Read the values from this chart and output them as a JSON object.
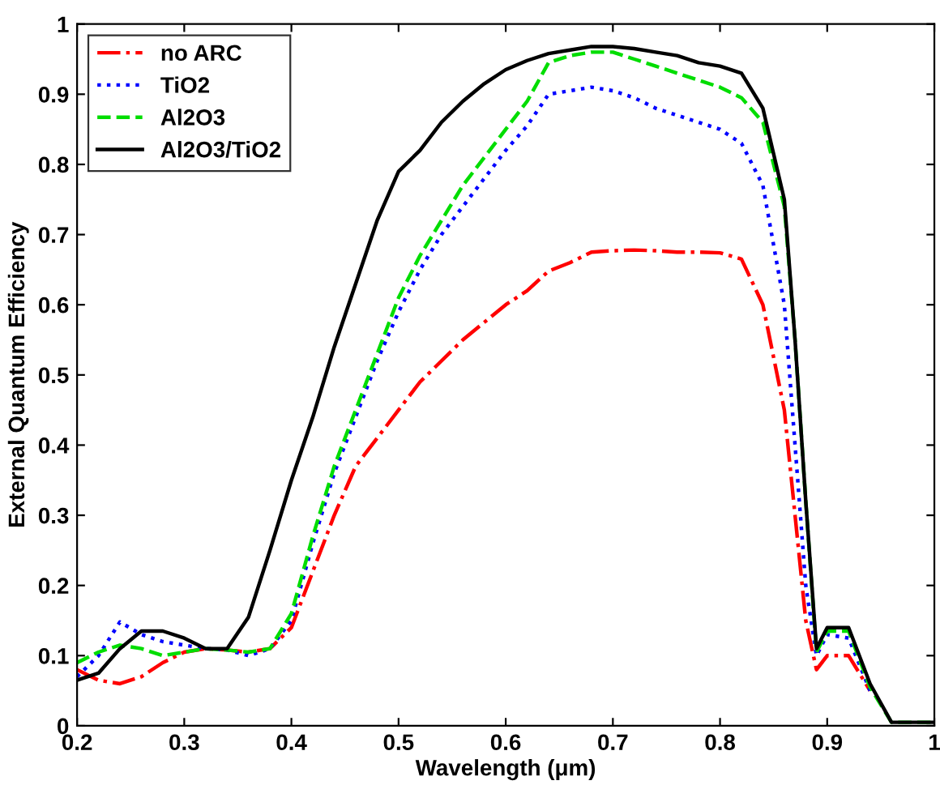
{
  "chart_data": {
    "type": "line",
    "xlabel": "Wavelength (μm)",
    "ylabel": "External Quantum Efficiency",
    "x": [
      0.2,
      0.22,
      0.24,
      0.26,
      0.28,
      0.3,
      0.32,
      0.34,
      0.36,
      0.38,
      0.4,
      0.42,
      0.44,
      0.46,
      0.48,
      0.5,
      0.52,
      0.54,
      0.56,
      0.58,
      0.6,
      0.62,
      0.64,
      0.66,
      0.68,
      0.7,
      0.72,
      0.74,
      0.76,
      0.78,
      0.8,
      0.82,
      0.84,
      0.86,
      0.87,
      0.88,
      0.89,
      0.9,
      0.92,
      0.94,
      0.96,
      0.98,
      1.0
    ],
    "series": [
      {
        "name": "no ARC",
        "color": "#ff0000",
        "line_style": "dashdot",
        "values": [
          0.08,
          0.065,
          0.06,
          0.07,
          0.09,
          0.105,
          0.11,
          0.108,
          0.105,
          0.11,
          0.14,
          0.22,
          0.3,
          0.37,
          0.41,
          0.45,
          0.49,
          0.52,
          0.55,
          0.575,
          0.6,
          0.62,
          0.648,
          0.66,
          0.675,
          0.677,
          0.678,
          0.677,
          0.675,
          0.675,
          0.674,
          0.665,
          0.6,
          0.45,
          0.3,
          0.15,
          0.08,
          0.1,
          0.1,
          0.05,
          null,
          null,
          null
        ]
      },
      {
        "name": "TiO2",
        "color": "#0000ff",
        "line_style": "dotted",
        "values": [
          0.07,
          0.1,
          0.148,
          0.13,
          0.12,
          0.115,
          0.11,
          0.108,
          0.1,
          0.11,
          0.15,
          0.26,
          0.36,
          0.44,
          0.52,
          0.59,
          0.65,
          0.7,
          0.74,
          0.78,
          0.82,
          0.855,
          0.9,
          0.905,
          0.91,
          0.905,
          0.895,
          0.88,
          0.87,
          0.86,
          0.85,
          0.83,
          0.77,
          0.6,
          0.4,
          0.2,
          0.1,
          0.13,
          0.125,
          0.05,
          null,
          null,
          null
        ]
      },
      {
        "name": "Al2O3",
        "color": "#00dd00",
        "line_style": "dashed",
        "values": [
          0.09,
          0.105,
          0.115,
          0.11,
          0.1,
          0.105,
          0.11,
          0.108,
          0.105,
          0.11,
          0.16,
          0.27,
          0.37,
          0.45,
          0.53,
          0.61,
          0.67,
          0.72,
          0.77,
          0.81,
          0.85,
          0.89,
          0.945,
          0.955,
          0.96,
          0.96,
          0.95,
          0.94,
          0.93,
          0.92,
          0.91,
          0.895,
          0.86,
          0.74,
          0.55,
          0.32,
          0.105,
          0.135,
          0.135,
          0.055,
          0.005,
          0.005,
          0.005
        ]
      },
      {
        "name": "Al2O3/TiO2",
        "color": "#000000",
        "line_style": "solid",
        "values": [
          0.065,
          0.075,
          0.11,
          0.135,
          0.135,
          0.125,
          0.11,
          0.11,
          0.155,
          0.25,
          0.35,
          0.44,
          0.54,
          0.63,
          0.72,
          0.79,
          0.82,
          0.86,
          0.89,
          0.915,
          0.935,
          0.948,
          0.958,
          0.963,
          0.968,
          0.968,
          0.965,
          0.96,
          0.955,
          0.945,
          0.94,
          0.93,
          0.88,
          0.75,
          0.55,
          0.32,
          0.11,
          0.14,
          0.14,
          0.06,
          0.005,
          0.005,
          0.005
        ]
      }
    ],
    "xlim": [
      0.2,
      1.0
    ],
    "xticks": [
      0.2,
      0.3,
      0.4,
      0.5,
      0.6,
      0.7,
      0.8,
      0.9,
      1
    ],
    "ylim": [
      0,
      1
    ],
    "yticks": [
      0,
      0.1,
      0.2,
      0.3,
      0.4,
      0.5,
      0.6,
      0.7,
      0.8,
      0.9,
      1
    ],
    "legend": "top left",
    "grid": false,
    "marker": "none"
  }
}
